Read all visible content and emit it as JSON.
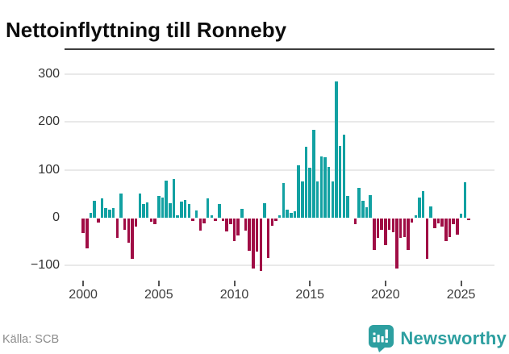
{
  "title": "Nettoinflyttning till Ronneby",
  "footer": {
    "source": "Källa: SCB"
  },
  "brand": {
    "name": "Newsworthy",
    "color": "#2d9fa0"
  },
  "chart_data": {
    "type": "bar",
    "title": "Nettoinflyttning till Ronneby",
    "ylabel": "",
    "xlabel": "",
    "unit": "net migration per quarter",
    "frequency": "quarterly",
    "x_start": {
      "year": 2000,
      "quarter": 1
    },
    "ylim": [
      -130,
      320
    ],
    "grid": true,
    "positive_color": "#12a1a2",
    "negative_color": "#a00d45",
    "y_ticks": [
      {
        "v": 300,
        "label": "300"
      },
      {
        "v": 200,
        "label": "200"
      },
      {
        "v": 100,
        "label": "100"
      },
      {
        "v": 0,
        "label": "0"
      },
      {
        "v": -100,
        "label": "−100"
      }
    ],
    "x_ticks": [
      {
        "year": 2000,
        "label": "2000"
      },
      {
        "year": 2005,
        "label": "2005"
      },
      {
        "year": 2010,
        "label": "2010"
      },
      {
        "year": 2015,
        "label": "2015"
      },
      {
        "year": 2020,
        "label": "2020"
      },
      {
        "year": 2025,
        "label": "2025"
      }
    ],
    "values": [
      -30,
      -62,
      10,
      35,
      -8,
      40,
      20,
      17,
      20,
      -40,
      50,
      -24,
      -50,
      -85,
      -17,
      51,
      28,
      32,
      -7,
      -11,
      45,
      42,
      77,
      31,
      81,
      5,
      34,
      37,
      29,
      -5,
      15,
      -25,
      -10,
      40,
      5,
      -5,
      28,
      -5,
      -27,
      -12,
      -47,
      -35,
      19,
      -25,
      -67,
      -104,
      -69,
      -110,
      31,
      -82,
      -15,
      -5,
      5,
      72,
      17,
      10,
      14,
      110,
      76,
      149,
      105,
      183,
      76,
      129,
      127,
      106,
      76,
      285,
      150,
      173,
      45,
      0,
      -12,
      62,
      36,
      22,
      47,
      -65,
      -40,
      -23,
      -55,
      -23,
      -28,
      -105,
      -40,
      -38,
      -65,
      -8,
      5,
      43,
      55,
      -85,
      23,
      -20,
      -10,
      -17,
      -47,
      -38,
      -11,
      -33,
      8,
      75,
      -4
    ]
  }
}
